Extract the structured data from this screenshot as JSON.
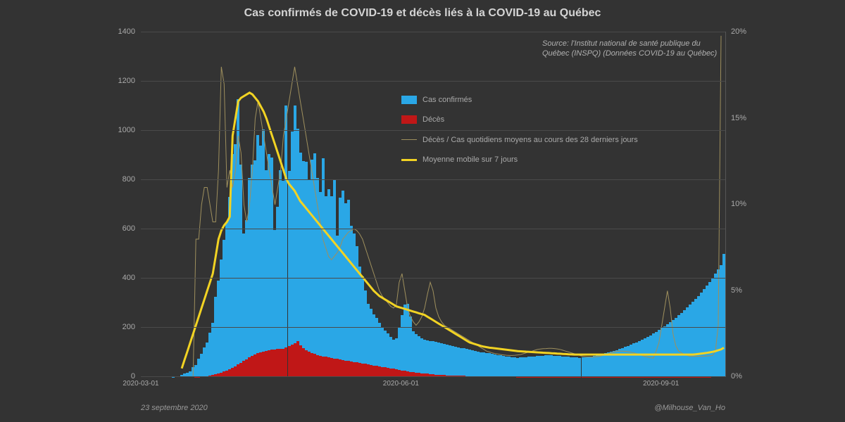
{
  "title": "Cas confirmés de COVID-19 et décès liés à la COVID-19 au Québec",
  "source_text": "Source: l'Institut national de santé publique du Québec (INSPQ)\n(Données COVID-19 au Québec)",
  "footer_left": "23 septembre 2020",
  "footer_right": "@Milhouse_Van_Ho",
  "chart": {
    "type": "combo-bar-line-dual-axis",
    "background_color": "#333333",
    "grid_color": "#4a4a4a",
    "title_fontsize": 16,
    "title_color": "#d4d4d4",
    "axis_label_color": "#aaaaaa",
    "axis_label_fontsize": 11,
    "y_left": {
      "min": 0,
      "max": 1400,
      "ticks": [
        0,
        200,
        400,
        600,
        800,
        1000,
        1200,
        1400
      ]
    },
    "y_right": {
      "min": 0,
      "max": 20,
      "ticks": [
        "0%",
        "5%",
        "10%",
        "15%",
        "20%"
      ],
      "tick_values": [
        0,
        5,
        10,
        15,
        20
      ]
    },
    "x_ticks": [
      {
        "label": "2020-03-01",
        "pos": 0.0
      },
      {
        "label": "2020-06-01",
        "pos": 0.445
      },
      {
        "label": "2020-09-01",
        "pos": 0.89
      }
    ],
    "n_days": 207,
    "cases": [
      0,
      0,
      0,
      0,
      0,
      0,
      0,
      0,
      0,
      0,
      0,
      1,
      3,
      4,
      8,
      13,
      17,
      24,
      39,
      50,
      74,
      94,
      121,
      139,
      181,
      219,
      326,
      392,
      477,
      558,
      628,
      732,
      907,
      947,
      1129,
      864,
      583,
      636,
      808,
      862,
      879,
      983,
      941,
      1006,
      839,
      907,
      892,
      598,
      691,
      839,
      796,
      1104,
      837,
      997,
      1102,
      1008,
      912,
      876,
      875,
      799,
      882,
      910,
      808,
      752,
      889,
      733,
      763,
      735,
      802,
      573,
      729,
      756,
      707,
      720,
      614,
      582,
      531,
      449,
      408,
      352,
      297,
      276,
      253,
      239,
      221,
      204,
      189,
      176,
      164,
      152,
      156,
      204,
      251,
      293,
      298,
      247,
      185,
      174,
      167,
      156,
      152,
      149,
      147,
      146,
      142,
      139,
      136,
      134,
      131,
      128,
      126,
      123,
      121,
      118,
      116,
      113,
      111,
      108,
      106,
      103,
      101,
      100,
      98,
      96,
      94,
      92,
      90,
      88,
      86,
      84,
      82,
      81,
      79,
      78,
      79,
      80,
      81,
      82,
      83,
      84,
      85,
      86,
      87,
      88,
      89,
      88,
      87,
      86,
      85,
      84,
      83,
      82,
      81,
      80,
      79,
      78,
      79,
      80,
      82,
      84,
      86,
      88,
      90,
      93,
      96,
      99,
      102,
      106,
      110,
      114,
      118,
      122,
      126,
      131,
      136,
      141,
      146,
      152,
      158,
      164,
      170,
      177,
      184,
      191,
      199,
      207,
      215,
      223,
      232,
      241,
      251,
      261,
      271,
      282,
      293,
      305,
      317,
      330,
      343,
      357,
      372,
      387,
      403,
      419,
      436,
      454,
      500
    ],
    "deaths": [
      0,
      0,
      0,
      0,
      0,
      0,
      0,
      0,
      0,
      0,
      0,
      0,
      0,
      0,
      0,
      0,
      0,
      0,
      0,
      1,
      1,
      2,
      3,
      4,
      6,
      8,
      11,
      14,
      18,
      22,
      27,
      32,
      38,
      44,
      51,
      58,
      65,
      72,
      79,
      85,
      91,
      96,
      100,
      104,
      107,
      109,
      111,
      112,
      113,
      114,
      115,
      120,
      125,
      131,
      138,
      147,
      130,
      118,
      109,
      102,
      97,
      93,
      90,
      87,
      84,
      82,
      79,
      77,
      75,
      73,
      71,
      69,
      67,
      65,
      63,
      61,
      59,
      57,
      55,
      53,
      51,
      49,
      47,
      45,
      43,
      41,
      39,
      37,
      35,
      33,
      31,
      29,
      27,
      25,
      23,
      21,
      19,
      17,
      16,
      15,
      14,
      13,
      12,
      11,
      10,
      9,
      8,
      8,
      7,
      7,
      6,
      6,
      5,
      5,
      5,
      4,
      4,
      4,
      3,
      3,
      3,
      3,
      3,
      2,
      2,
      2,
      2,
      2,
      2,
      2,
      2,
      2,
      2,
      1,
      1,
      1,
      1,
      1,
      1,
      1,
      1,
      1,
      1,
      1,
      1,
      1,
      1,
      1,
      1,
      1,
      1,
      1,
      1,
      1,
      1,
      1,
      1,
      1,
      1,
      1,
      1,
      1,
      1,
      1,
      1,
      1,
      1,
      1,
      1,
      1,
      1,
      1,
      1,
      1,
      1,
      1,
      1,
      1,
      1,
      1,
      1,
      1,
      1,
      1,
      1,
      1,
      1,
      1,
      1,
      1,
      1,
      1,
      1,
      1,
      1,
      1,
      1,
      1,
      1,
      1,
      1,
      1,
      2,
      2,
      2,
      3,
      3
    ],
    "ratio28": [
      0,
      0,
      0,
      0,
      0,
      0,
      0,
      0,
      0,
      0,
      0,
      0,
      0,
      0,
      0,
      0,
      0,
      0,
      0,
      8,
      8,
      10,
      11,
      11,
      10,
      9,
      9,
      12,
      18,
      17,
      11,
      12,
      11,
      12,
      14,
      13,
      10,
      9,
      10,
      12,
      15,
      16,
      15,
      14,
      13,
      12,
      11,
      10,
      11,
      12,
      14,
      15,
      16,
      17,
      18,
      17,
      16,
      15,
      14,
      13,
      12,
      11,
      10,
      9,
      8,
      7.5,
      7,
      6.8,
      7,
      7.2,
      7.5,
      8,
      8.2,
      8.4,
      8.5,
      8.6,
      8.5,
      8.3,
      8,
      7.5,
      7,
      6.5,
      6,
      5.5,
      5,
      4.7,
      4.5,
      4.3,
      4.1,
      4,
      4.2,
      5.5,
      6,
      5,
      4,
      3.5,
      3.2,
      3,
      3.2,
      3.5,
      4,
      4.8,
      5.5,
      5,
      4,
      3.5,
      3.2,
      3,
      2.9,
      2.8,
      2.7,
      2.6,
      2.5,
      2.4,
      2.3,
      2.2,
      2.1,
      2,
      1.9,
      1.8,
      1.7,
      1.6,
      1.5,
      1.45,
      1.4,
      1.36,
      1.33,
      1.3,
      1.28,
      1.26,
      1.25,
      1.25,
      1.26,
      1.28,
      1.3,
      1.35,
      1.4,
      1.45,
      1.5,
      1.55,
      1.6,
      1.62,
      1.64,
      1.65,
      1.66,
      1.66,
      1.65,
      1.63,
      1.6,
      1.55,
      1.5,
      1.45,
      1.4,
      1.35,
      1.3,
      1.25,
      1.2,
      1.18,
      1.16,
      1.15,
      1.16,
      1.18,
      1.2,
      1.25,
      1.3,
      1.35,
      1.4,
      1.45,
      1.48,
      1.5,
      1.5,
      1.49,
      1.47,
      1.44,
      1.4,
      1.35,
      1.3,
      1.25,
      1.2,
      1.16,
      1.12,
      1.1,
      1.5,
      2,
      3,
      4,
      5,
      4,
      2.5,
      1.8,
      1.5,
      1.4,
      1.3,
      1.25,
      1.2,
      1.2,
      1.2,
      1.2,
      1.2,
      1.21,
      1.22,
      1.23,
      1.25,
      1.5,
      3,
      19.8
    ],
    "ma7": [
      0,
      0,
      0,
      0,
      0,
      0,
      0,
      0,
      0,
      0,
      0,
      0,
      0,
      0,
      0.5,
      1,
      1.5,
      2,
      2.5,
      3,
      3.5,
      4,
      4.5,
      5,
      5.5,
      6,
      7,
      8,
      8.5,
      8.8,
      9,
      9.3,
      14,
      15,
      16,
      16.2,
      16.3,
      16.4,
      16.5,
      16.4,
      16.2,
      16,
      15.7,
      15.4,
      15,
      14.5,
      14,
      13.5,
      13,
      12.5,
      12,
      11.5,
      11.2,
      11,
      10.8,
      10.5,
      10.2,
      10,
      9.8,
      9.6,
      9.4,
      9.2,
      9,
      8.8,
      8.6,
      8.4,
      8.2,
      8,
      7.8,
      7.6,
      7.4,
      7.2,
      7,
      6.8,
      6.6,
      6.4,
      6.2,
      6,
      5.8,
      5.6,
      5.4,
      5.2,
      5,
      4.85,
      4.7,
      4.6,
      4.5,
      4.4,
      4.3,
      4.2,
      4.1,
      4.05,
      4,
      3.95,
      3.9,
      3.85,
      3.8,
      3.75,
      3.7,
      3.65,
      3.6,
      3.5,
      3.4,
      3.3,
      3.2,
      3.1,
      3,
      2.9,
      2.8,
      2.7,
      2.6,
      2.5,
      2.4,
      2.3,
      2.2,
      2.1,
      2,
      1.95,
      1.9,
      1.85,
      1.8,
      1.76,
      1.73,
      1.7,
      1.68,
      1.66,
      1.64,
      1.62,
      1.6,
      1.58,
      1.56,
      1.54,
      1.52,
      1.5,
      1.49,
      1.48,
      1.47,
      1.46,
      1.45,
      1.44,
      1.43,
      1.42,
      1.41,
      1.4,
      1.39,
      1.38,
      1.37,
      1.36,
      1.35,
      1.34,
      1.33,
      1.32,
      1.31,
      1.3,
      1.3,
      1.3,
      1.3,
      1.3,
      1.3,
      1.3,
      1.3,
      1.3,
      1.3,
      1.3,
      1.3,
      1.3,
      1.3,
      1.3,
      1.3,
      1.3,
      1.3,
      1.3,
      1.3,
      1.3,
      1.3,
      1.3,
      1.3,
      1.3,
      1.3,
      1.3,
      1.3,
      1.3,
      1.3,
      1.3,
      1.3,
      1.3,
      1.3,
      1.3,
      1.3,
      1.3,
      1.3,
      1.3,
      1.3,
      1.3,
      1.3,
      1.3,
      1.32,
      1.34,
      1.36,
      1.38,
      1.4,
      1.43,
      1.46,
      1.5,
      1.55,
      1.6,
      1.7
    ],
    "colors": {
      "cases": "#2aa7e6",
      "deaths": "#c01717",
      "ratio28": "#9e8f5d",
      "ma7": "#f2d323"
    },
    "line_widths": {
      "ratio28": 1,
      "ma7": 3
    },
    "legend": [
      {
        "type": "swatch",
        "color": "#2aa7e6",
        "label": "Cas confirmés"
      },
      {
        "type": "swatch",
        "color": "#c01717",
        "label": "Décès"
      },
      {
        "type": "line",
        "color": "#9e8f5d",
        "width": 1,
        "label": "Décès / Cas quotidiens moyens au cours des 28 derniers jours"
      },
      {
        "type": "line",
        "color": "#f2d323",
        "width": 3,
        "label": "Moyenne mobile sur 7 jours"
      }
    ]
  }
}
